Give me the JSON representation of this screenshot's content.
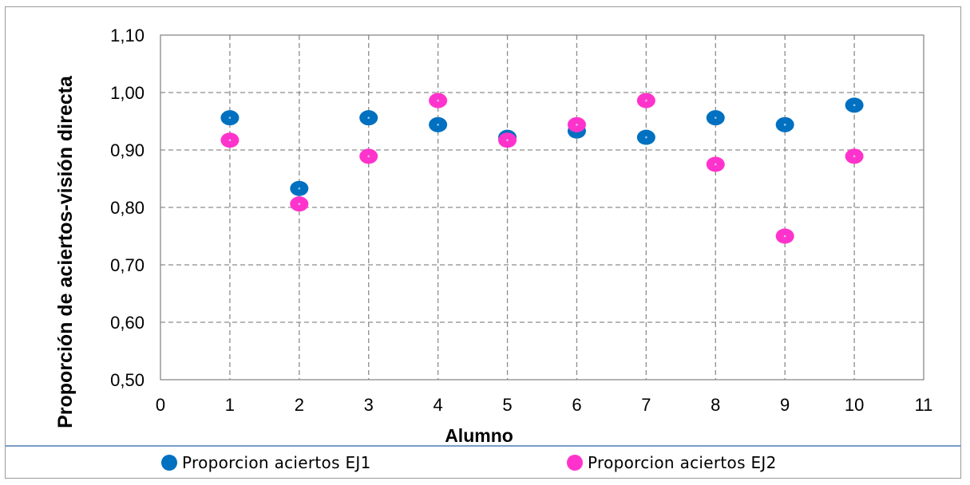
{
  "chart_data": {
    "type": "scatter",
    "title": "",
    "xlabel": "Alumno",
    "ylabel": "Proporción de aciertos-visión directa",
    "xlim": [
      0,
      11
    ],
    "ylim": [
      0.5,
      1.1
    ],
    "x_ticks": [
      "0",
      "1",
      "2",
      "3",
      "4",
      "5",
      "6",
      "7",
      "8",
      "9",
      "10",
      "11"
    ],
    "y_ticks": [
      "0,50",
      "0,60",
      "0,70",
      "0,80",
      "0,90",
      "1,00",
      "1,10"
    ],
    "grid": true,
    "legend_position": "bottom",
    "series": [
      {
        "name": "Proporcion aciertos EJ1",
        "color": "#0070c0",
        "x": [
          1,
          2,
          3,
          4,
          5,
          6,
          7,
          8,
          9,
          10
        ],
        "y": [
          0.956,
          0.833,
          0.956,
          0.944,
          0.922,
          0.933,
          0.922,
          0.956,
          0.944,
          0.978
        ]
      },
      {
        "name": "Proporcion aciertos EJ2",
        "color": "#ff33cc",
        "x": [
          1,
          2,
          3,
          4,
          5,
          6,
          7,
          8,
          9,
          10
        ],
        "y": [
          0.917,
          0.806,
          0.889,
          0.986,
          0.917,
          0.944,
          0.986,
          0.875,
          0.75,
          0.889
        ]
      }
    ]
  }
}
